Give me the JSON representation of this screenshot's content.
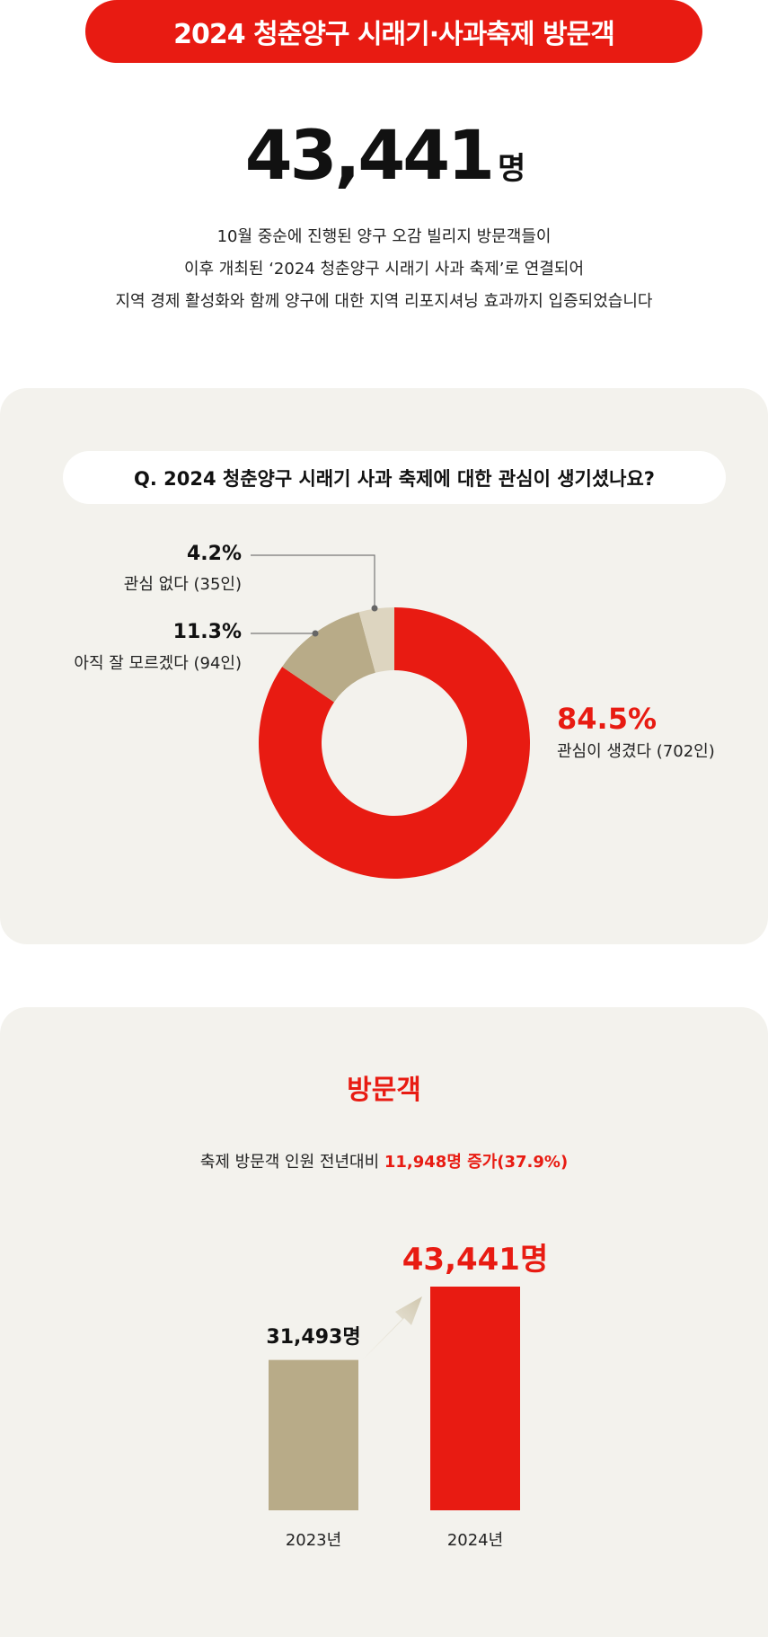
{
  "header": {
    "title": "2024 청춘양구 시래기·사과축제 방문객"
  },
  "headline": {
    "number": "43,441",
    "unit": "명"
  },
  "description": [
    "10월 중순에 진행된 양구 오감 빌리지 방문객들이",
    "이후 개최된 ‘2024 청춘양구 시래기 사과 축제’로 연결되어",
    "지역 경제 활성화와 함께 양구에 대한 지역 리포지셔닝 효과까지 입증되었습니다"
  ],
  "colors": {
    "red": "#e81b12",
    "tan": "#b8ab88",
    "light_tan": "#ddd5c0",
    "panel": "#f3f2ed"
  },
  "survey": {
    "question": "Q. 2024 청춘양구 시래기 사과 축제에 대한 관심이 생기셨나요?",
    "chart_data": {
      "type": "pie",
      "donut": true,
      "slices": [
        {
          "percent": 84.5,
          "pct_label": "84.5%",
          "label": "관심이 생겼다 (702인)",
          "count": 702,
          "color": "#e81b12"
        },
        {
          "percent": 11.3,
          "pct_label": "11.3%",
          "label": "아직 잘 모르겠다 (94인)",
          "count": 94,
          "color": "#b8ab88"
        },
        {
          "percent": 4.2,
          "pct_label": "4.2%",
          "label": "관심 없다 (35인)",
          "count": 35,
          "color": "#ddd5c0"
        }
      ]
    }
  },
  "visitors": {
    "title": "방문객",
    "subtitle_prefix": "축제 방문객 인원 전년대비 ",
    "subtitle_highlight": "11,948명 증가(37.9%)",
    "chart_data": {
      "type": "bar",
      "categories": [
        "2023년",
        "2024년"
      ],
      "values": [
        31493,
        43441
      ],
      "value_labels": [
        "31,493명",
        "43,441명"
      ],
      "colors": [
        "#b8ab88",
        "#e81b12"
      ]
    }
  }
}
